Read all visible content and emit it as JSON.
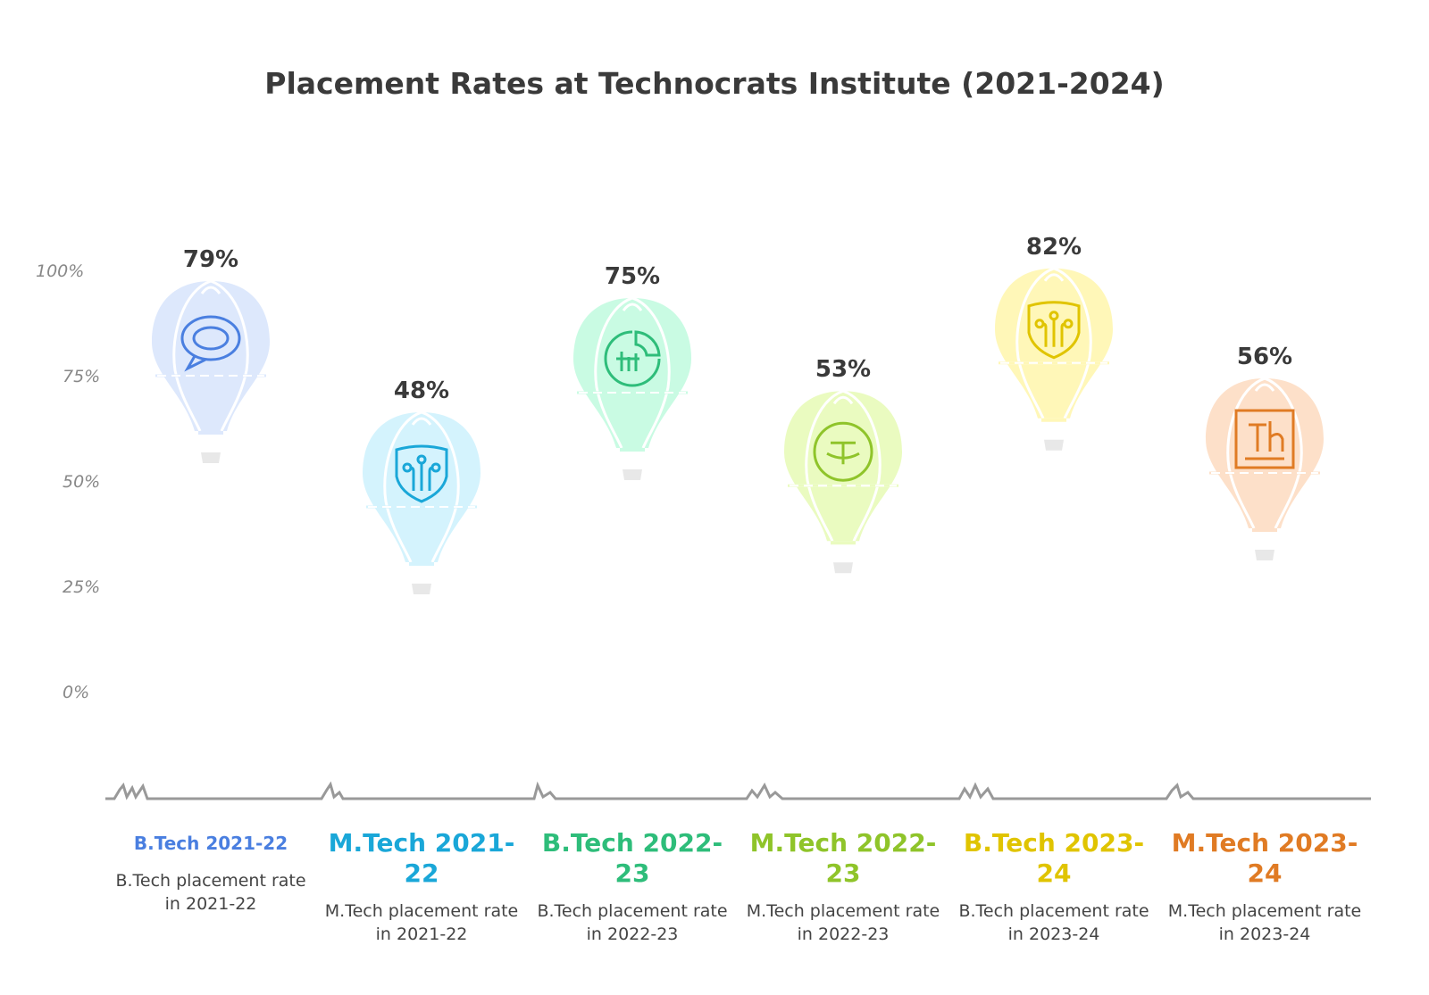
{
  "chart_data": {
    "type": "bar",
    "title": "Placement Rates at Technocrats Institute (2021-2024)",
    "ylim": [
      0,
      100
    ],
    "yticks": [
      "100%",
      "75%",
      "50%",
      "25%",
      "0%"
    ],
    "categories": [
      "B.Tech 2021-22",
      "M.Tech 2021-22",
      "B.Tech 2022-23",
      "M.Tech 2022-23",
      "B.Tech 2023-24",
      "M.Tech 2023-24"
    ],
    "values": [
      79,
      48,
      75,
      53,
      82,
      56
    ],
    "data_labels": [
      "79%",
      "48%",
      "75%",
      "53%",
      "82%",
      "56%"
    ],
    "descriptions": [
      "B.Tech placement rate in 2021-22",
      "M.Tech placement rate in 2021-22",
      "B.Tech placement rate in 2022-23",
      "M.Tech placement rate in 2022-23",
      "B.Tech placement rate in 2023-24",
      "M.Tech placement rate in 2023-24"
    ],
    "colors": [
      "#4a7fe0",
      "#1aa7d8",
      "#2ebd7a",
      "#8fc42a",
      "#e0c400",
      "#e07b24"
    ],
    "fills": [
      "#dde8fc",
      "#d4f3fd",
      "#c9fbe3",
      "#eafbc0",
      "#fff7b8",
      "#fde0c9"
    ],
    "icons": [
      "speech-bubble-icon",
      "circuit-shield-icon",
      "chart-gauge-icon",
      "target-icon",
      "circuit-shield-icon",
      "th-box-icon"
    ],
    "grid": false,
    "legend": "none"
  }
}
